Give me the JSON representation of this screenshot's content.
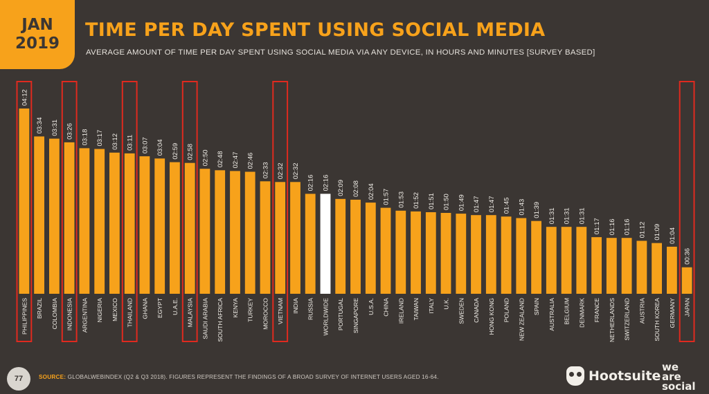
{
  "header": {
    "badge_month": "JAN",
    "badge_year": "2019",
    "title": "TIME PER DAY SPENT USING SOCIAL MEDIA",
    "subtitle": "AVERAGE AMOUNT OF TIME PER DAY SPENT USING SOCIAL MEDIA VIA ANY DEVICE, IN HOURS AND MINUTES [SURVEY BASED]"
  },
  "colors": {
    "background": "#3b3633",
    "bar": "#f7a21b",
    "highlight_bar": "#ffffff",
    "highlight_box": "#e02a1f",
    "text": "#f2efe9"
  },
  "chart_data": {
    "type": "bar",
    "categories": [
      "PHILIPPINES",
      "BRAZIL",
      "COLOMBIA",
      "INDONESIA",
      "ARGENTINA",
      "NIGERIA",
      "MEXICO",
      "THAILAND",
      "GHANA",
      "EGYPT",
      "U.A.E.",
      "MALAYSIA",
      "SAUDI ARABIA",
      "SOUTH AFRICA",
      "KENYA",
      "TURKEY",
      "MOROCCO",
      "VIETNAM",
      "INDIA",
      "RUSSIA",
      "WORLDWIDE",
      "PORTUGAL",
      "SINGAPORE",
      "U.S.A.",
      "CHINA",
      "IRELAND",
      "TAIWAN",
      "ITALY",
      "U.K.",
      "SWEDEN",
      "CANADA",
      "HONG KONG",
      "POLAND",
      "NEW ZEALAND",
      "SPAIN",
      "AUSTRALIA",
      "BELGIUM",
      "DENMARK",
      "FRANCE",
      "NETHERLANDS",
      "SWITZERLAND",
      "AUSTRIA",
      "SOUTH KOREA",
      "GERMANY",
      "JAPAN"
    ],
    "labels": [
      "04:12",
      "03:34",
      "03:31",
      "03:26",
      "03:18",
      "03:17",
      "03:12",
      "03:11",
      "03:07",
      "03:04",
      "02:59",
      "02:58",
      "02:50",
      "02:48",
      "02:47",
      "02:46",
      "02:33",
      "02:32",
      "02:32",
      "02:16",
      "02:16",
      "02:09",
      "02:08",
      "02:04",
      "01:57",
      "01:53",
      "01:52",
      "01:51",
      "01:50",
      "01:49",
      "01:47",
      "01:47",
      "01:45",
      "01:43",
      "01:39",
      "01:31",
      "01:31",
      "01:31",
      "01:17",
      "01:16",
      "01:16",
      "01:12",
      "01:09",
      "01:04",
      "00:36"
    ],
    "values": [
      252,
      214,
      211,
      206,
      198,
      197,
      192,
      191,
      187,
      184,
      179,
      178,
      170,
      168,
      167,
      166,
      153,
      152,
      152,
      136,
      136,
      129,
      128,
      124,
      117,
      113,
      112,
      111,
      110,
      109,
      107,
      107,
      105,
      103,
      99,
      91,
      91,
      91,
      77,
      76,
      76,
      72,
      69,
      64,
      36
    ],
    "units": "minutes",
    "highlight_white": [
      "WORLDWIDE"
    ],
    "boxed": [
      "PHILIPPINES",
      "INDONESIA",
      "THAILAND",
      "MALAYSIA",
      "VIETNAM",
      "JAPAN"
    ]
  },
  "footer": {
    "page_number": "77",
    "source_label": "SOURCE:",
    "source_text": "GLOBALWEBINDEX (Q2 & Q3 2018). FIGURES REPRESENT THE FINDINGS OF A BROAD SURVEY OF INTERNET USERS AGED 16-64.",
    "brand_hootsuite": "Hootsuite",
    "brand_was_1": "we",
    "brand_was_2": "are",
    "brand_was_3": "social"
  },
  "icons": {
    "hootsuite_logo": "owl-icon"
  }
}
